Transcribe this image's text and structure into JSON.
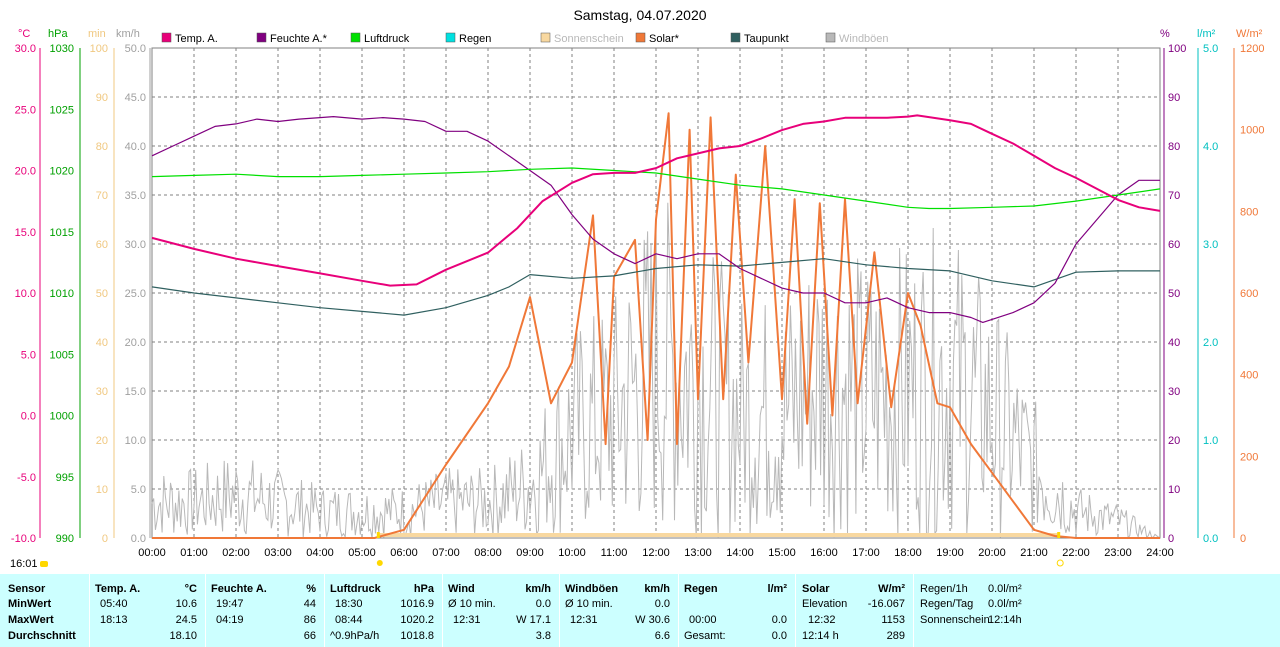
{
  "title": "Samstag, 04.07.2020",
  "time_marker": "16:01",
  "axes": {
    "left_units": [
      "°C",
      "hPa",
      "min",
      "km/h"
    ],
    "right_units": [
      "%",
      "l/m²",
      "W/m²"
    ],
    "temp_ticks": [
      "30.0",
      "25.0",
      "20.0",
      "15.0",
      "10.0",
      "5.0",
      "0.0",
      "-5.0",
      "-10.0"
    ],
    "hpa_ticks": [
      "1030",
      "1025",
      "1020",
      "1015",
      "1010",
      "1005",
      "1000",
      "995",
      "990"
    ],
    "min_ticks": [
      "100",
      "90",
      "80",
      "70",
      "60",
      "50",
      "40",
      "30",
      "20",
      "10",
      "0"
    ],
    "kmh_ticks": [
      "50.0",
      "45.0",
      "40.0",
      "35.0",
      "30.0",
      "25.0",
      "20.0",
      "15.0",
      "10.0",
      "5.0",
      "0.0"
    ],
    "pct_ticks": [
      "100",
      "90",
      "80",
      "70",
      "60",
      "50",
      "40",
      "30",
      "20",
      "10",
      "0"
    ],
    "rain_ticks": [
      "5.0",
      "4.0",
      "3.0",
      "2.0",
      "1.0",
      "0.0"
    ],
    "wm2_ticks": [
      "1200",
      "1000",
      "800",
      "600",
      "400",
      "200",
      "0"
    ],
    "x_ticks": [
      "00:00",
      "01:00",
      "02:00",
      "03:00",
      "04:00",
      "05:00",
      "06:00",
      "07:00",
      "08:00",
      "09:00",
      "10:00",
      "11:00",
      "12:00",
      "13:00",
      "14:00",
      "15:00",
      "16:00",
      "17:00",
      "18:00",
      "19:00",
      "20:00",
      "21:00",
      "22:00",
      "23:00",
      "24:00"
    ]
  },
  "colors": {
    "temp": "#e8007a",
    "humidity": "#800080",
    "pressure": "#00e000",
    "rain": "#00e0e0",
    "sunshine": "#f8d8a0",
    "solar": "#f07838",
    "dewpoint": "#306060",
    "gusts": "#b8b8b8",
    "left_temp_axis": "#e8007a",
    "left_hpa_axis": "#00a000",
    "left_min_axis": "#f0c880",
    "left_kmh_axis": "#a0a0a0",
    "right_pct_axis": "#800080",
    "right_rain_axis": "#00c0c0",
    "right_wm2_axis": "#f07838",
    "stats_bg": "#ccffff"
  },
  "chart_data": {
    "type": "line",
    "title": "Samstag, 04.07.2020",
    "x_unit": "hour",
    "xlim": [
      0,
      24
    ],
    "legend": [
      "Temp. A.",
      "Feuchte A.*",
      "Luftdruck",
      "Regen",
      "Sonnenschein",
      "Solar*",
      "Taupunkt",
      "Windböen"
    ],
    "legend_placement": "top",
    "grid": true,
    "series": [
      {
        "name": "Temp. A.",
        "unit": "°C",
        "axis": "temp",
        "ylim": [
          -10,
          30
        ],
        "points": [
          [
            0,
            14.5
          ],
          [
            1,
            13.6
          ],
          [
            2,
            12.8
          ],
          [
            3,
            12.2
          ],
          [
            4,
            11.6
          ],
          [
            5,
            11.0
          ],
          [
            5.67,
            10.6
          ],
          [
            6.3,
            10.7
          ],
          [
            7,
            11.9
          ],
          [
            8,
            13.3
          ],
          [
            8.7,
            15.3
          ],
          [
            9.3,
            17.5
          ],
          [
            10,
            19.0
          ],
          [
            10.5,
            19.7
          ],
          [
            11,
            19.8
          ],
          [
            11.5,
            19.8
          ],
          [
            12,
            20.2
          ],
          [
            12.5,
            21.0
          ],
          [
            13,
            21.4
          ],
          [
            13.5,
            21.8
          ],
          [
            14,
            22.0
          ],
          [
            14.5,
            22.6
          ],
          [
            15,
            23.3
          ],
          [
            15.5,
            23.8
          ],
          [
            16,
            24.0
          ],
          [
            16.5,
            24.3
          ],
          [
            17,
            24.3
          ],
          [
            17.5,
            24.3
          ],
          [
            18,
            24.4
          ],
          [
            18.22,
            24.5
          ],
          [
            19,
            24.1
          ],
          [
            19.5,
            23.8
          ],
          [
            20,
            23.0
          ],
          [
            20.5,
            22.2
          ],
          [
            21,
            21.2
          ],
          [
            21.5,
            20.2
          ],
          [
            22,
            19.4
          ],
          [
            22.5,
            18.5
          ],
          [
            23,
            17.6
          ],
          [
            23.5,
            17.0
          ],
          [
            24,
            16.7
          ]
        ]
      },
      {
        "name": "Feuchte A.*",
        "unit": "%",
        "axis": "pct",
        "ylim": [
          0,
          100
        ],
        "points": [
          [
            0,
            78
          ],
          [
            0.5,
            80
          ],
          [
            1,
            82
          ],
          [
            1.5,
            84
          ],
          [
            2,
            84.5
          ],
          [
            2.5,
            85.5
          ],
          [
            3,
            85
          ],
          [
            3.5,
            85.5
          ],
          [
            4,
            85.8
          ],
          [
            4.32,
            86
          ],
          [
            5,
            85.5
          ],
          [
            5.5,
            85.8
          ],
          [
            6,
            85.5
          ],
          [
            6.5,
            85
          ],
          [
            7,
            83
          ],
          [
            7.5,
            83
          ],
          [
            8,
            81
          ],
          [
            8.5,
            78
          ],
          [
            9,
            75
          ],
          [
            9.5,
            72
          ],
          [
            10,
            66
          ],
          [
            10.5,
            61
          ],
          [
            11,
            58
          ],
          [
            11.5,
            56
          ],
          [
            12,
            58
          ],
          [
            12.5,
            57
          ],
          [
            13,
            58
          ],
          [
            13.5,
            58
          ],
          [
            14,
            55
          ],
          [
            14.5,
            53
          ],
          [
            15,
            51
          ],
          [
            15.5,
            50
          ],
          [
            16,
            50
          ],
          [
            16.5,
            48
          ],
          [
            17,
            48
          ],
          [
            17.5,
            49
          ],
          [
            18,
            47
          ],
          [
            18.5,
            46
          ],
          [
            19,
            46
          ],
          [
            19.5,
            45
          ],
          [
            19.78,
            44
          ],
          [
            20.5,
            46
          ],
          [
            21,
            48
          ],
          [
            21.5,
            52
          ],
          [
            22,
            60
          ],
          [
            22.5,
            65
          ],
          [
            23,
            70
          ],
          [
            23.5,
            73
          ],
          [
            24,
            73
          ]
        ]
      },
      {
        "name": "Luftdruck",
        "unit": "hPa",
        "axis": "hpa",
        "ylim": [
          990,
          1030
        ],
        "points": [
          [
            0,
            1019.5
          ],
          [
            1,
            1019.6
          ],
          [
            2,
            1019.7
          ],
          [
            3,
            1019.5
          ],
          [
            4,
            1019.5
          ],
          [
            5,
            1019.6
          ],
          [
            6,
            1019.7
          ],
          [
            7,
            1019.8
          ],
          [
            8,
            1019.9
          ],
          [
            9,
            1020.1
          ],
          [
            10,
            1020.2
          ],
          [
            11,
            1020.0
          ],
          [
            12,
            1019.8
          ],
          [
            13,
            1019.3
          ],
          [
            14,
            1018.8
          ],
          [
            15,
            1018.5
          ],
          [
            16,
            1018.0
          ],
          [
            17,
            1017.5
          ],
          [
            18,
            1017.0
          ],
          [
            18.5,
            1016.9
          ],
          [
            19,
            1016.9
          ],
          [
            20,
            1017.0
          ],
          [
            21,
            1017.1
          ],
          [
            22,
            1017.5
          ],
          [
            23,
            1018.0
          ],
          [
            24,
            1018.5
          ]
        ]
      },
      {
        "name": "Taupunkt",
        "unit": "°C",
        "axis": "temp",
        "ylim": [
          -10,
          30
        ],
        "points": [
          [
            0,
            10.5
          ],
          [
            1,
            10.0
          ],
          [
            2,
            9.6
          ],
          [
            3,
            9.2
          ],
          [
            4,
            8.8
          ],
          [
            5,
            8.5
          ],
          [
            6,
            8.2
          ],
          [
            7,
            8.8
          ],
          [
            8,
            9.8
          ],
          [
            8.5,
            10.5
          ],
          [
            9,
            11.5
          ],
          [
            10,
            11.2
          ],
          [
            11,
            11.4
          ],
          [
            12,
            12.0
          ],
          [
            13,
            12.3
          ],
          [
            14,
            12.2
          ],
          [
            15,
            12.5
          ],
          [
            16,
            12.8
          ],
          [
            17,
            12.3
          ],
          [
            18,
            12.0
          ],
          [
            19,
            11.8
          ],
          [
            20,
            11.0
          ],
          [
            21,
            10.5
          ],
          [
            22,
            11.7
          ],
          [
            23,
            11.8
          ],
          [
            24,
            11.8
          ]
        ]
      },
      {
        "name": "Solar*",
        "unit": "W/m²",
        "axis": "wm2",
        "ylim": [
          0,
          1200
        ],
        "points": [
          [
            0,
            0
          ],
          [
            5.3,
            0
          ],
          [
            6,
            20
          ],
          [
            7,
            180
          ],
          [
            8,
            330
          ],
          [
            8.5,
            420
          ],
          [
            9,
            590
          ],
          [
            9.5,
            330
          ],
          [
            10,
            430
          ],
          [
            10.5,
            790
          ],
          [
            10.8,
            230
          ],
          [
            11,
            640
          ],
          [
            11.5,
            730
          ],
          [
            11.8,
            240
          ],
          [
            12,
            780
          ],
          [
            12.3,
            1040
          ],
          [
            12.5,
            230
          ],
          [
            12.8,
            1000
          ],
          [
            13,
            340
          ],
          [
            13.3,
            1030
          ],
          [
            13.6,
            340
          ],
          [
            13.9,
            890
          ],
          [
            14.2,
            430
          ],
          [
            14.6,
            960
          ],
          [
            15,
            340
          ],
          [
            15.3,
            830
          ],
          [
            15.6,
            280
          ],
          [
            15.9,
            820
          ],
          [
            16.2,
            300
          ],
          [
            16.5,
            830
          ],
          [
            16.8,
            330
          ],
          [
            17.2,
            700
          ],
          [
            17.6,
            320
          ],
          [
            18,
            600
          ],
          [
            18.3,
            520
          ],
          [
            18.7,
            330
          ],
          [
            19,
            320
          ],
          [
            19.5,
            230
          ],
          [
            20,
            160
          ],
          [
            20.5,
            90
          ],
          [
            21,
            20
          ],
          [
            21.5,
            5
          ],
          [
            22,
            0
          ],
          [
            24,
            0
          ]
        ]
      },
      {
        "name": "Windböen",
        "unit": "km/h",
        "axis": "kmh",
        "ylim": [
          0,
          50
        ],
        "envelope": [
          [
            0,
            4
          ],
          [
            1,
            4
          ],
          [
            2,
            5
          ],
          [
            3,
            4
          ],
          [
            4,
            3
          ],
          [
            5,
            3
          ],
          [
            6,
            3
          ],
          [
            7,
            4
          ],
          [
            8,
            4
          ],
          [
            9,
            6
          ],
          [
            10,
            12
          ],
          [
            11,
            14
          ],
          [
            12,
            20
          ],
          [
            13,
            18
          ],
          [
            14,
            14
          ],
          [
            15,
            14
          ],
          [
            16,
            18
          ],
          [
            17,
            16
          ],
          [
            18,
            17
          ],
          [
            19,
            18
          ],
          [
            20,
            14
          ],
          [
            21,
            8
          ],
          [
            22,
            3
          ],
          [
            23,
            2
          ],
          [
            24,
            0
          ]
        ]
      },
      {
        "name": "Sonnenschein",
        "unit": "min",
        "axis": "min",
        "ylim": [
          0,
          100
        ],
        "intervals": [
          [
            5.4,
            21.6
          ]
        ]
      }
    ]
  },
  "stats": {
    "headers": {
      "sensor": "Sensor",
      "temp": "Temp. A.",
      "temp_unit": "°C",
      "hum": "Feuchte A.",
      "hum_unit": "%",
      "press": "Luftdruck",
      "press_unit": "hPa",
      "wind": "Wind",
      "wind_unit": "km/h",
      "gust": "Windböen",
      "gust_unit": "km/h",
      "rain": "Regen",
      "rain_unit": "l/m²",
      "solar": "Solar",
      "solar_unit": "W/m²"
    },
    "rows": {
      "min": "MinWert",
      "max": "MaxWert",
      "avg": "Durchschnitt"
    },
    "temp": {
      "min_time": "05:40",
      "min_val": "10.6",
      "max_time": "18:13",
      "max_val": "24.5",
      "avg_val": "18.10"
    },
    "hum": {
      "min_time": "19:47",
      "min_val": "44",
      "max_time": "04:19",
      "max_val": "86",
      "avg_val": "66"
    },
    "press": {
      "min_time": "18:30",
      "min_val": "1016.9",
      "max_time": "08:44",
      "max_val": "1020.2",
      "avg_label": "^0.9hPa/h",
      "avg_val": "1018.8"
    },
    "wind": {
      "min_label": "Ø 10 min.",
      "min_val": "0.0",
      "max_time": "12:31",
      "max_val": "W 17.1",
      "avg_val": "3.8"
    },
    "gust": {
      "min_label": "Ø 10 min.",
      "min_val": "0.0",
      "max_time": "12:31",
      "max_val": "W 30.6",
      "avg_val": "6.6"
    },
    "rain": {
      "min_val": "",
      "max_time": "00:00",
      "max_val": "0.0",
      "total_label": "Gesamt:",
      "total_val": "0.0"
    },
    "solar": {
      "elev_label": "Elevation",
      "elev_val": "-16.067",
      "max_time": "12:32",
      "max_val": "1153",
      "avg_label": "12:14 h",
      "avg_val": "289"
    },
    "extra": {
      "rain_1h_label": "Regen/1h",
      "rain_1h_val": "0.0l/m²",
      "rain_day_label": "Regen/Tag",
      "rain_day_val": "0.0l/m²",
      "sun_label": "Sonnenschein",
      "sun_val": "12:14h"
    }
  }
}
